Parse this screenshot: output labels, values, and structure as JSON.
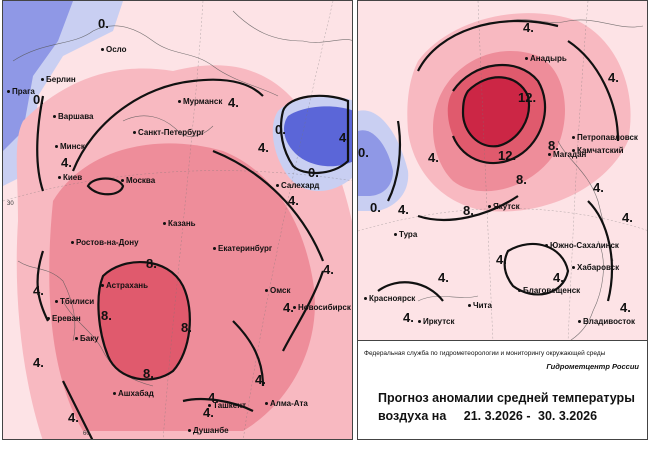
{
  "palette": {
    "warm_1": "#fde3e6",
    "warm_2": "#f8b9c1",
    "warm_3": "#ee8d9a",
    "warm_4": "#e05a6d",
    "warm_5": "#cc2645",
    "cold_1": "#c9cff2",
    "cold_2": "#8f98e6",
    "cold_3": "#5b66d8"
  },
  "west_map": {
    "cities": [
      "Осло",
      "Берлин",
      "Прага",
      "Варшава",
      "Минск",
      "Киев",
      "Мурманск",
      "Санкт-Петербург",
      "Москва",
      "Казань",
      "Салехард",
      "Ростов-на-Дону",
      "Екатеринбург",
      "Астрахань",
      "Тбилиси",
      "Ереван",
      "Баку",
      "Омск",
      "Новосибирск",
      "Ашхабад",
      "Ташкент",
      "Алма-Ата",
      "Душанбе"
    ],
    "contour_labels": [
      "0.",
      "0.",
      "4.",
      "0.",
      "4.",
      "4.",
      "0.",
      "4.",
      "4.",
      "8.",
      "8.",
      "8.",
      "8.",
      "4.",
      "4.",
      "4.",
      "4.",
      "4.",
      "4.",
      "4.",
      "4."
    ],
    "coord_labels": [
      "30",
      "60"
    ]
  },
  "east_map": {
    "cities": [
      "Анадырь",
      "Магадан",
      "Петропавловск",
      "Камчатский",
      "Якутск",
      "Тура",
      "Южно-Сахалинск",
      "Хабаровск",
      "Благовещенск",
      "Красноярск",
      "Чита",
      "Иркутск",
      "Владивосток"
    ],
    "contour_labels": [
      "0.",
      "4.",
      "12.",
      "12.",
      "8.",
      "8.",
      "8.",
      "4.",
      "4.",
      "4.",
      "4.",
      "0.",
      "4.",
      "4.",
      "4.",
      "4.",
      "4.",
      "4."
    ]
  },
  "caption": {
    "agency": "Федеральная служба по гидрометеорологии и мониторингу окружающей среды",
    "center": "Гидрометцентр России",
    "title_line1": "Прогноз аномалии средней температуры",
    "title_line2": "воздуха на",
    "period_start": "21. 3.2026",
    "period_sep": "-",
    "period_end": "30. 3.2026"
  }
}
